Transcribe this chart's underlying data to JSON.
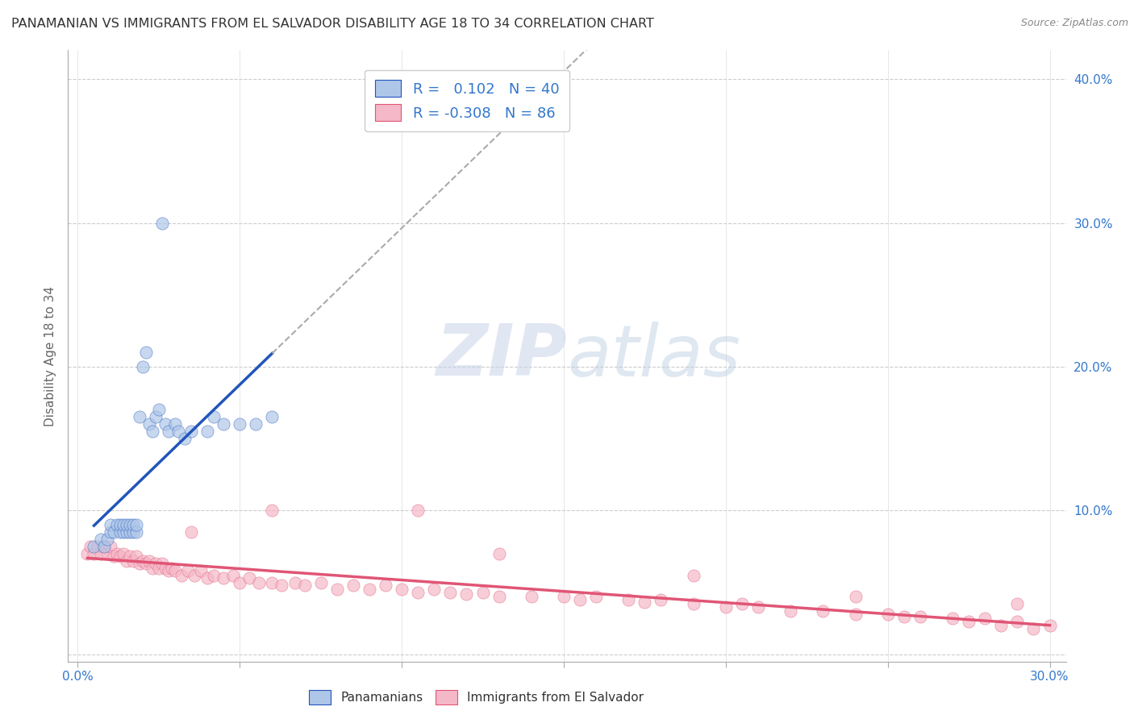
{
  "title": "PANAMANIAN VS IMMIGRANTS FROM EL SALVADOR DISABILITY AGE 18 TO 34 CORRELATION CHART",
  "source": "Source: ZipAtlas.com",
  "ylabel": "Disability Age 18 to 34",
  "xlim": [
    -0.003,
    0.305
  ],
  "ylim": [
    -0.005,
    0.42
  ],
  "legend1_label": "R =   0.102   N = 40",
  "legend2_label": "R = -0.308   N = 86",
  "panamanian_color": "#aec6e8",
  "salvador_color": "#f5b8c8",
  "trend_panama_color": "#2255bb",
  "trend_salvador_color": "#e05575",
  "panamanian_x": [
    0.005,
    0.007,
    0.008,
    0.009,
    0.01,
    0.01,
    0.011,
    0.012,
    0.013,
    0.013,
    0.014,
    0.014,
    0.015,
    0.015,
    0.016,
    0.016,
    0.017,
    0.017,
    0.018,
    0.018,
    0.019,
    0.02,
    0.021,
    0.022,
    0.023,
    0.024,
    0.025,
    0.026,
    0.027,
    0.028,
    0.03,
    0.031,
    0.033,
    0.035,
    0.04,
    0.042,
    0.045,
    0.05,
    0.055,
    0.06
  ],
  "panamanian_y": [
    0.075,
    0.08,
    0.075,
    0.08,
    0.085,
    0.09,
    0.085,
    0.09,
    0.085,
    0.09,
    0.085,
    0.09,
    0.085,
    0.09,
    0.085,
    0.09,
    0.085,
    0.09,
    0.085,
    0.09,
    0.165,
    0.2,
    0.21,
    0.16,
    0.155,
    0.165,
    0.17,
    0.3,
    0.16,
    0.155,
    0.16,
    0.155,
    0.15,
    0.155,
    0.155,
    0.165,
    0.16,
    0.16,
    0.16,
    0.165
  ],
  "salvador_x": [
    0.003,
    0.004,
    0.005,
    0.006,
    0.007,
    0.008,
    0.009,
    0.01,
    0.011,
    0.012,
    0.013,
    0.014,
    0.015,
    0.016,
    0.017,
    0.018,
    0.019,
    0.02,
    0.021,
    0.022,
    0.023,
    0.024,
    0.025,
    0.026,
    0.027,
    0.028,
    0.029,
    0.03,
    0.032,
    0.034,
    0.036,
    0.038,
    0.04,
    0.042,
    0.045,
    0.048,
    0.05,
    0.053,
    0.056,
    0.06,
    0.063,
    0.067,
    0.07,
    0.075,
    0.08,
    0.085,
    0.09,
    0.095,
    0.1,
    0.105,
    0.11,
    0.115,
    0.12,
    0.125,
    0.13,
    0.14,
    0.15,
    0.155,
    0.16,
    0.17,
    0.175,
    0.18,
    0.19,
    0.2,
    0.205,
    0.21,
    0.22,
    0.23,
    0.24,
    0.25,
    0.255,
    0.26,
    0.27,
    0.275,
    0.28,
    0.285,
    0.29,
    0.295,
    0.3,
    0.105,
    0.06,
    0.035,
    0.13,
    0.19,
    0.24,
    0.29
  ],
  "salvador_y": [
    0.07,
    0.075,
    0.07,
    0.075,
    0.07,
    0.075,
    0.07,
    0.075,
    0.068,
    0.07,
    0.068,
    0.07,
    0.065,
    0.068,
    0.065,
    0.068,
    0.063,
    0.065,
    0.063,
    0.065,
    0.06,
    0.063,
    0.06,
    0.063,
    0.06,
    0.058,
    0.06,
    0.058,
    0.055,
    0.058,
    0.055,
    0.058,
    0.053,
    0.055,
    0.053,
    0.055,
    0.05,
    0.053,
    0.05,
    0.05,
    0.048,
    0.05,
    0.048,
    0.05,
    0.045,
    0.048,
    0.045,
    0.048,
    0.045,
    0.043,
    0.045,
    0.043,
    0.042,
    0.043,
    0.04,
    0.04,
    0.04,
    0.038,
    0.04,
    0.038,
    0.036,
    0.038,
    0.035,
    0.033,
    0.035,
    0.033,
    0.03,
    0.03,
    0.028,
    0.028,
    0.026,
    0.026,
    0.025,
    0.023,
    0.025,
    0.02,
    0.023,
    0.018,
    0.02,
    0.1,
    0.1,
    0.085,
    0.07,
    0.055,
    0.04,
    0.035
  ]
}
